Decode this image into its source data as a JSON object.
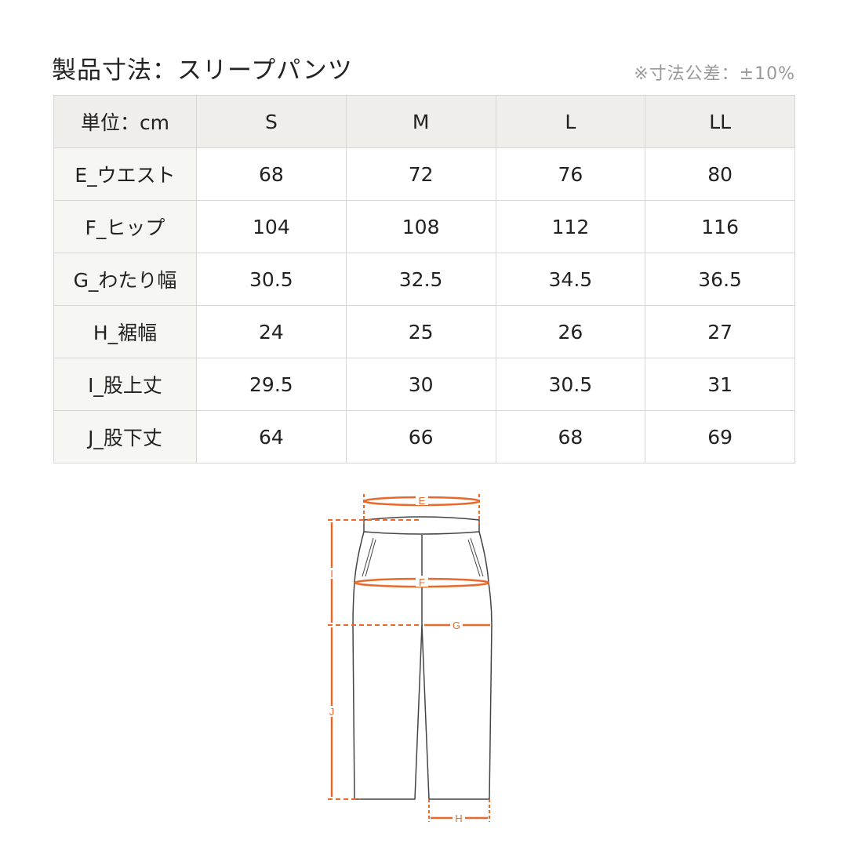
{
  "title": "製品寸法：スリープパンツ",
  "tolerance_note": "※寸法公差：±10%",
  "table": {
    "header": [
      "単位：cm",
      "S",
      "M",
      "L",
      "LL"
    ],
    "rows": [
      {
        "label": "E_ウエスト",
        "values": [
          "68",
          "72",
          "76",
          "80"
        ]
      },
      {
        "label": "F_ヒップ",
        "values": [
          "104",
          "108",
          "112",
          "116"
        ]
      },
      {
        "label": "G_わたり幅",
        "values": [
          "30.5",
          "32.5",
          "34.5",
          "36.5"
        ]
      },
      {
        "label": "H_裾幅",
        "values": [
          "24",
          "25",
          "26",
          "27"
        ]
      },
      {
        "label": "I_股上丈",
        "values": [
          "29.5",
          "30",
          "30.5",
          "31"
        ]
      },
      {
        "label": "J_股下丈",
        "values": [
          "64",
          "66",
          "68",
          "69"
        ]
      }
    ]
  },
  "diagram": {
    "labels": {
      "E": "E",
      "F": "F",
      "G": "G",
      "H": "H",
      "I": "I",
      "J": "J"
    },
    "accent_color": "#e8692a",
    "line_color": "#444444"
  }
}
